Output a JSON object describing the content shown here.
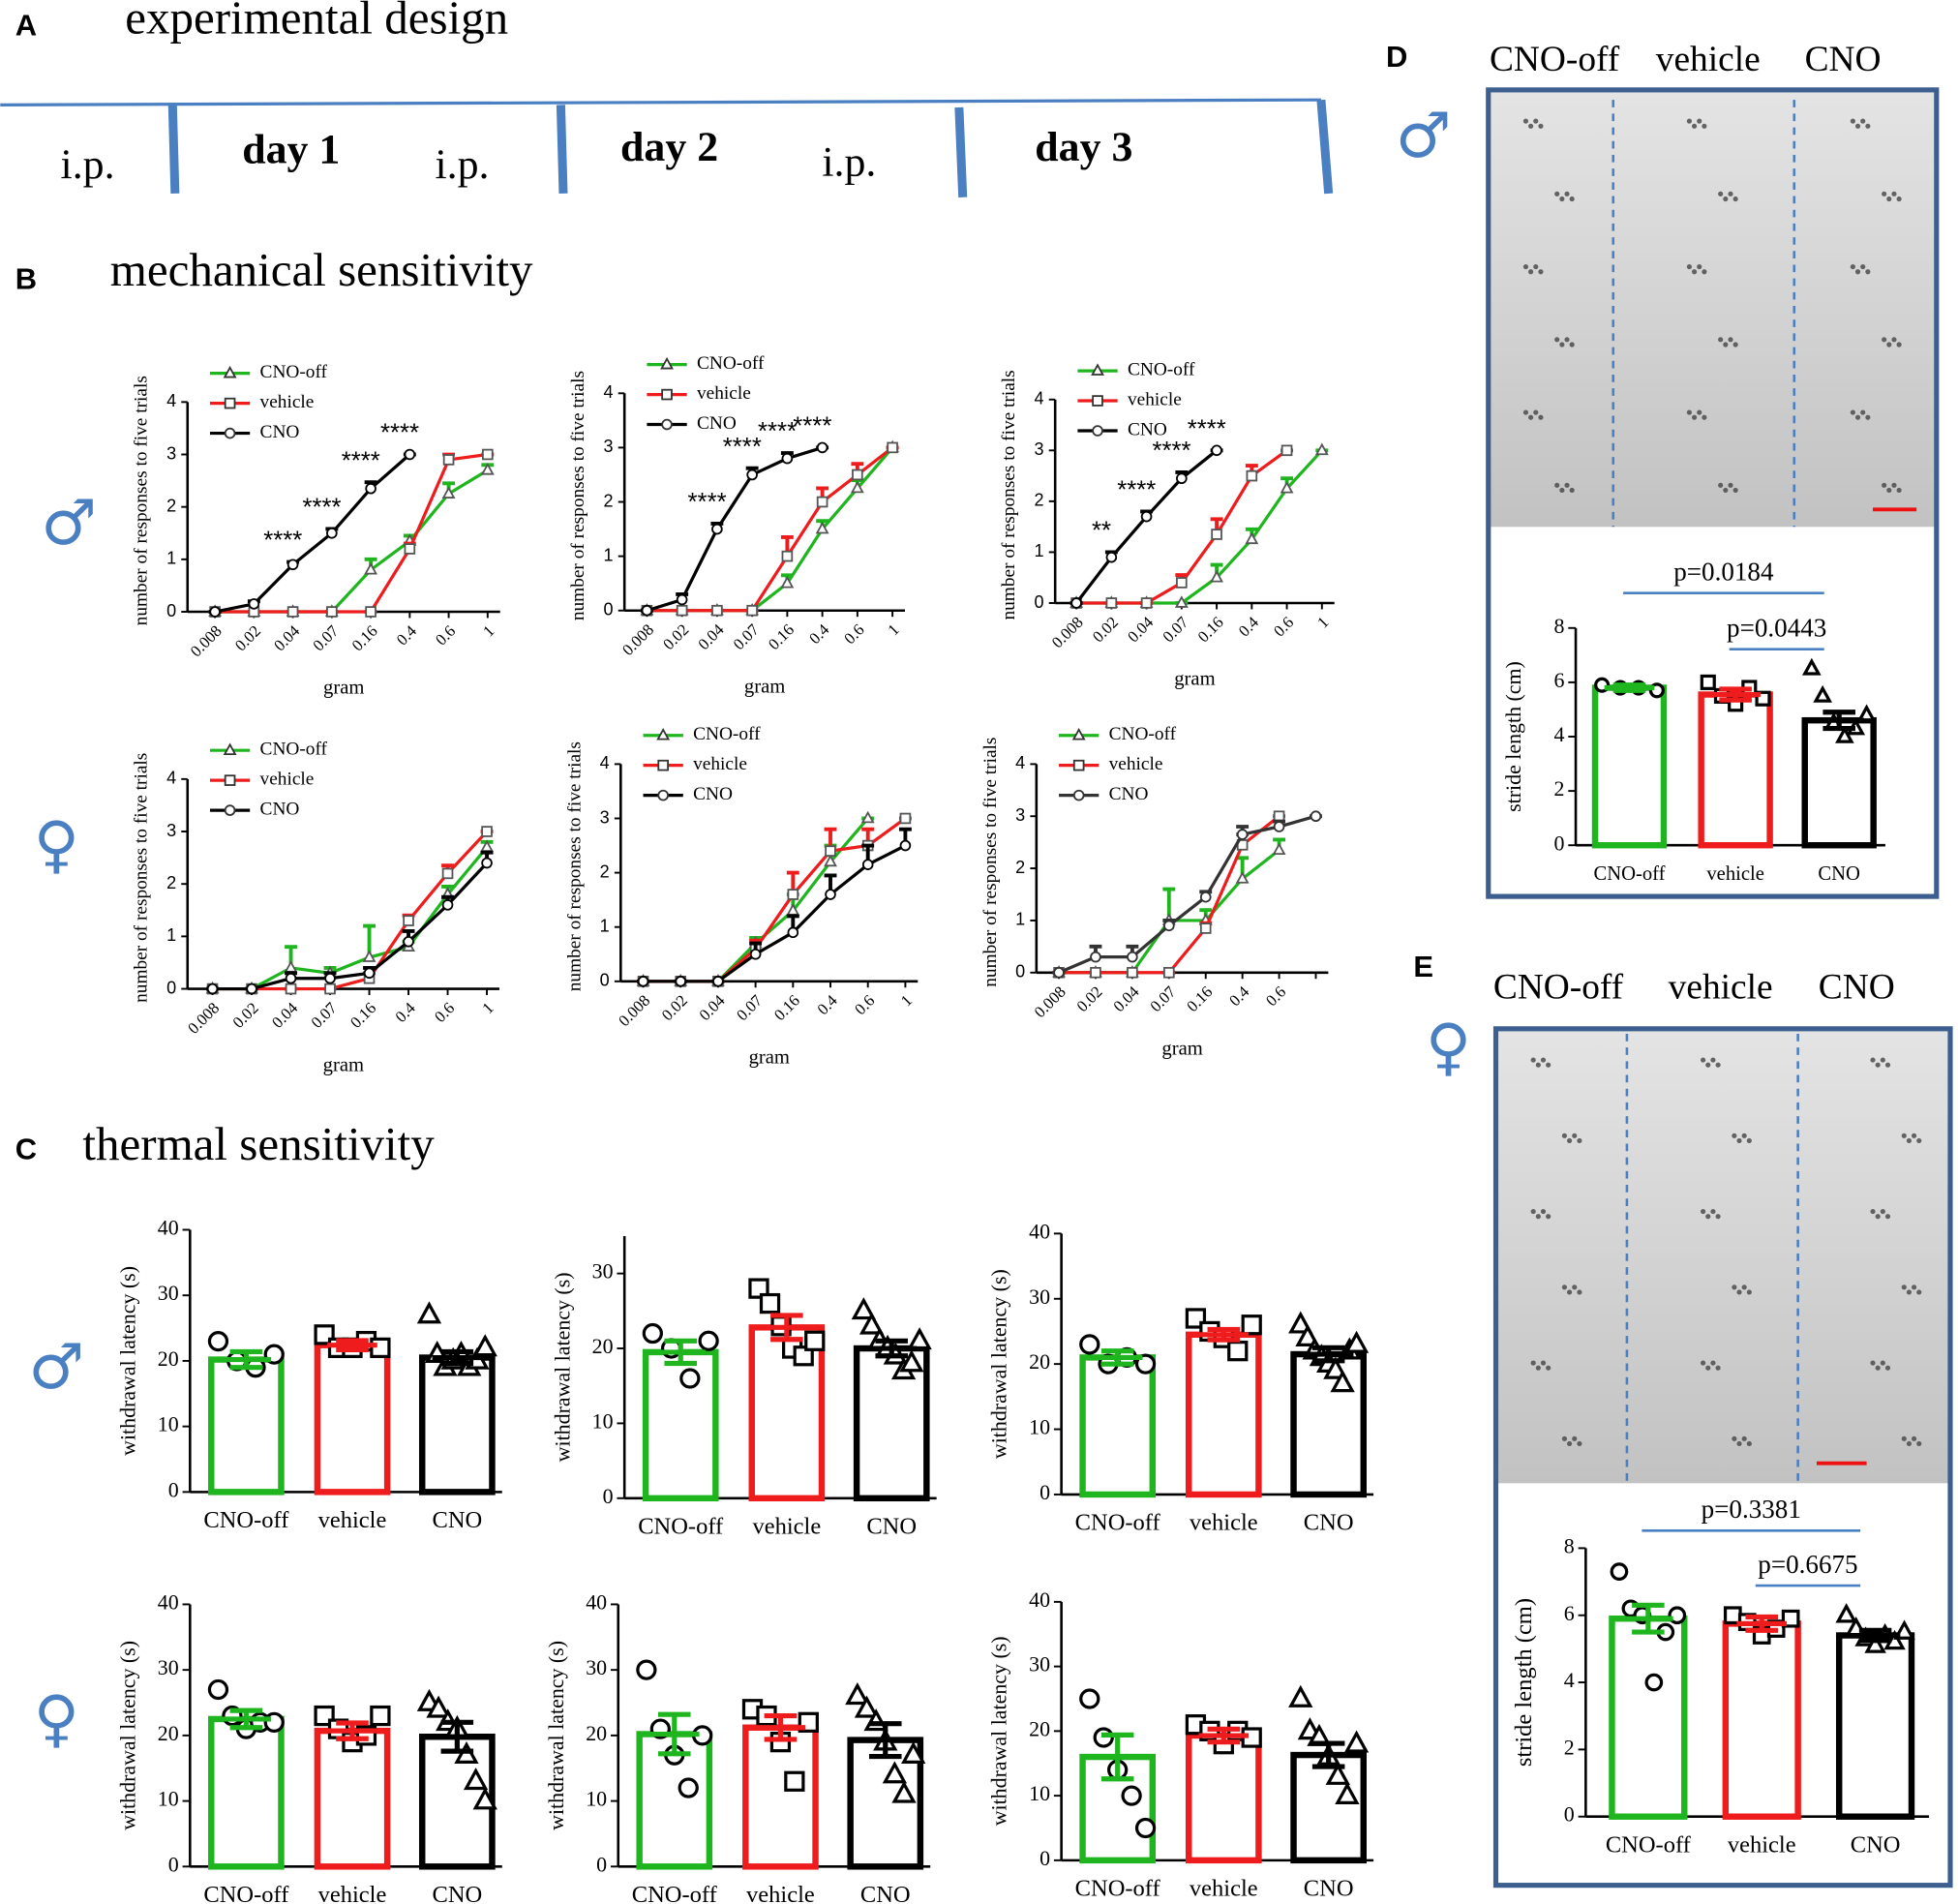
{
  "panels": {
    "A": {
      "label": "A",
      "title": "experimental design",
      "timeline": [
        "i.p.",
        "day 1",
        "i.p.",
        "day 2",
        "i.p.",
        "day 3"
      ]
    },
    "B": {
      "label": "B",
      "title": "mechanical sensitivity"
    },
    "C": {
      "label": "C",
      "title": "thermal sensitivity"
    },
    "D": {
      "label": "D",
      "sex": "♂",
      "columns": [
        "CNO-off",
        "vehicle",
        "CNO"
      ]
    },
    "E": {
      "label": "E",
      "sex": "♀",
      "columns": [
        "CNO-off",
        "vehicle",
        "CNO"
      ]
    }
  },
  "sex_labels": [
    "♂",
    "♀",
    "♂",
    "♀"
  ],
  "chart_data": [
    {
      "type": "line",
      "xlabel": "gram",
      "ylabel": "number of responses to five trials",
      "categories": [
        "0.008",
        "0.02",
        "0.04",
        "0.07",
        "0.16",
        "0.4",
        "0.6",
        "1"
      ],
      "ylim": [
        0,
        4
      ],
      "yticks": [
        0,
        1,
        2,
        3,
        4
      ],
      "series": [
        {
          "name": "CNO-off",
          "color": "#1fb51f",
          "marker": "triangle",
          "values": [
            0,
            0,
            0,
            0,
            0.8,
            1.35,
            2.25,
            2.7
          ],
          "errors": [
            0,
            0,
            0,
            0,
            0.2,
            0.1,
            0.2,
            0.1
          ]
        },
        {
          "name": "vehicle",
          "color": "#ee1c1c",
          "marker": "square",
          "values": [
            0,
            0,
            0,
            0,
            0,
            1.2,
            2.9,
            3
          ],
          "errors": [
            0,
            0,
            0,
            0,
            0,
            0.1,
            0.1,
            0
          ]
        },
        {
          "name": "CNO",
          "color": "#000000",
          "marker": "circle",
          "values": [
            0,
            0.15,
            0.9,
            1.5,
            2.35,
            3,
            null,
            null
          ],
          "errors": [
            0,
            0.05,
            0.05,
            0.08,
            0.12,
            0,
            null,
            null
          ]
        }
      ],
      "annotations": [
        {
          "text": "****",
          "category": "0.04"
        },
        {
          "text": "****",
          "category": "0.07"
        },
        {
          "text": "****",
          "category": "0.16"
        },
        {
          "text": "****",
          "category": "0.4"
        }
      ]
    },
    {
      "type": "line",
      "xlabel": "gram",
      "ylabel": "number of responses to five trials",
      "categories": [
        "0.008",
        "0.02",
        "0.04",
        "0.07",
        "0.16",
        "0.4",
        "0.6",
        "1"
      ],
      "ylim": [
        0,
        4
      ],
      "yticks": [
        0,
        1,
        2,
        3,
        4
      ],
      "series": [
        {
          "name": "CNO-off",
          "color": "#1fb51f",
          "marker": "triangle",
          "values": [
            0,
            0,
            0,
            0,
            0.5,
            1.5,
            2.25,
            3
          ],
          "errors": [
            0,
            0,
            0,
            0,
            0.15,
            0.15,
            0.15,
            0
          ]
        },
        {
          "name": "vehicle",
          "color": "#ee1c1c",
          "marker": "square",
          "values": [
            0,
            0,
            0,
            0,
            1,
            2,
            2.5,
            3
          ],
          "errors": [
            0,
            0,
            0,
            0,
            0.35,
            0.25,
            0.2,
            0
          ]
        },
        {
          "name": "CNO",
          "color": "#000000",
          "marker": "circle",
          "values": [
            0,
            0.2,
            1.5,
            2.5,
            2.8,
            3,
            null,
            null
          ],
          "errors": [
            0,
            0.1,
            0.1,
            0.12,
            0.1,
            0,
            null,
            null
          ]
        }
      ],
      "annotations": [
        {
          "text": "****",
          "category": "0.04"
        },
        {
          "text": "****",
          "category": "0.07"
        },
        {
          "text": "****",
          "category": "0.16"
        },
        {
          "text": "****",
          "category": "0.4"
        }
      ]
    },
    {
      "type": "line",
      "xlabel": "gram",
      "ylabel": "number of responses to five trials",
      "categories": [
        "0.008",
        "0.02",
        "0.04",
        "0.07",
        "0.16",
        "0.4",
        "0.6",
        "1"
      ],
      "ylim": [
        0,
        4
      ],
      "yticks": [
        0,
        1,
        2,
        3,
        4
      ],
      "series": [
        {
          "name": "CNO-off",
          "color": "#1fb51f",
          "marker": "triangle",
          "values": [
            0,
            0,
            0,
            0,
            0.5,
            1.25,
            2.25,
            3
          ],
          "errors": [
            0,
            0,
            0,
            0,
            0.25,
            0.2,
            0.2,
            0
          ]
        },
        {
          "name": "vehicle",
          "color": "#ee1c1c",
          "marker": "square",
          "values": [
            0,
            0,
            0,
            0.4,
            1.35,
            2.5,
            3,
            null
          ],
          "errors": [
            0,
            0,
            0,
            0.15,
            0.3,
            0.2,
            0,
            null
          ]
        },
        {
          "name": "CNO",
          "color": "#000000",
          "marker": "circle",
          "values": [
            0,
            0.9,
            1.7,
            2.45,
            3,
            null,
            null,
            null
          ],
          "errors": [
            0,
            0.1,
            0.1,
            0.12,
            0,
            null,
            null,
            null
          ]
        }
      ],
      "annotations": [
        {
          "text": "**",
          "category": "0.02"
        },
        {
          "text": "****",
          "category": "0.04"
        },
        {
          "text": "****",
          "category": "0.07"
        },
        {
          "text": "****",
          "category": "0.16"
        }
      ]
    },
    {
      "type": "line",
      "xlabel": "gram",
      "ylabel": "number of responses to five trials",
      "categories": [
        "0.008",
        "0.02",
        "0.04",
        "0.07",
        "0.16",
        "0.4",
        "0.6",
        "1"
      ],
      "ylim": [
        0,
        4
      ],
      "yticks": [
        0,
        1,
        2,
        3,
        4
      ],
      "series": [
        {
          "name": "CNO-off",
          "color": "#1fb51f",
          "marker": "triangle",
          "values": [
            0,
            0,
            0.4,
            0.3,
            0.6,
            0.8,
            1.8,
            2.7
          ],
          "errors": [
            0,
            0,
            0.4,
            0.1,
            0.6,
            0.1,
            0.15,
            0.1
          ]
        },
        {
          "name": "vehicle",
          "color": "#ee1c1c",
          "marker": "square",
          "values": [
            0,
            0,
            0,
            0,
            0.2,
            1.3,
            2.2,
            3
          ],
          "errors": [
            0,
            0,
            0,
            0,
            0.1,
            0.1,
            0.15,
            0
          ]
        },
        {
          "name": "CNO",
          "color": "#000000",
          "marker": "circle",
          "values": [
            0,
            0,
            0.2,
            0.2,
            0.3,
            0.9,
            1.6,
            2.4
          ],
          "errors": [
            0,
            0,
            0.1,
            0.1,
            0.1,
            0.2,
            0.15,
            0.2
          ]
        }
      ]
    },
    {
      "type": "line",
      "xlabel": "gram",
      "ylabel": "number of responses to five trials",
      "categories": [
        "0.008",
        "0.02",
        "0.04",
        "0.07",
        "0.16",
        "0.4",
        "0.6",
        "1"
      ],
      "ylim": [
        0,
        4
      ],
      "yticks": [
        0,
        1,
        2,
        3,
        4
      ],
      "series": [
        {
          "name": "CNO-off",
          "color": "#1fb51f",
          "marker": "triangle",
          "values": [
            0,
            0,
            0,
            0.7,
            1.3,
            2.2,
            3,
            null
          ],
          "errors": [
            0,
            0,
            0,
            0.1,
            0.3,
            0.3,
            0,
            null
          ]
        },
        {
          "name": "vehicle",
          "color": "#ee1c1c",
          "marker": "square",
          "values": [
            0,
            0,
            0,
            0.6,
            1.6,
            2.4,
            2.5,
            3
          ],
          "errors": [
            0,
            0,
            0,
            0.15,
            0.4,
            0.4,
            0.3,
            0
          ]
        },
        {
          "name": "CNO",
          "color": "#000000",
          "marker": "circle",
          "values": [
            0,
            0,
            0,
            0.5,
            0.9,
            1.6,
            2.15,
            2.5
          ],
          "errors": [
            0,
            0,
            0,
            0.2,
            0.3,
            0.35,
            0.35,
            0.3
          ]
        }
      ]
    },
    {
      "type": "line",
      "xlabel": "gram",
      "ylabel": "number of responses to five trials",
      "categories": [
        "0.008",
        "0.02",
        "0.04",
        "0.07",
        "0.16",
        "0.4",
        "0.6",
        null
      ],
      "ylim": [
        0,
        4
      ],
      "yticks": [
        0,
        1,
        2,
        3,
        4
      ],
      "series": [
        {
          "name": "CNO-off",
          "color": "#1fb51f",
          "marker": "triangle",
          "values": [
            0,
            0,
            0,
            1,
            1,
            1.8,
            2.35,
            null
          ],
          "errors": [
            0,
            0,
            0,
            0.6,
            0.2,
            0.4,
            0.2,
            null
          ]
        },
        {
          "name": "vehicle",
          "color": "#ee1c1c",
          "marker": "square",
          "values": [
            0,
            0,
            0,
            0,
            0.85,
            2.45,
            3,
            null
          ],
          "errors": [
            0,
            0,
            0,
            0,
            0.1,
            0.2,
            0,
            null
          ]
        },
        {
          "name": "CNO",
          "color": "#333333",
          "marker": "circle",
          "values": [
            0,
            0.3,
            0.3,
            0.9,
            1.45,
            2.65,
            2.8,
            3
          ],
          "errors": [
            0,
            0.2,
            0.2,
            0.1,
            0.1,
            0.15,
            0.1,
            0
          ]
        }
      ]
    },
    {
      "type": "bar",
      "ylabel": "withdrawal latency (s)",
      "categories": [
        "CNO-off",
        "vehicle",
        "CNO"
      ],
      "colors": [
        "#1fb51f",
        "#ee1c1c",
        "#000000"
      ],
      "markers": [
        "circle",
        "square",
        "triangle"
      ],
      "values": [
        20.2,
        22.4,
        20.5
      ],
      "errors": [
        1.2,
        0.7,
        0.9
      ],
      "points": [
        [
          23,
          20,
          19,
          21
        ],
        [
          24,
          22,
          22,
          23,
          22
        ],
        [
          27,
          21,
          19,
          20,
          21,
          19,
          20,
          22
        ]
      ],
      "ylim": [
        0,
        40
      ],
      "yticks": [
        0,
        10,
        20,
        30,
        40
      ]
    },
    {
      "type": "bar",
      "ylabel": "withdrawal latency (s)",
      "categories": [
        "CNO-off",
        "vehicle",
        "CNO"
      ],
      "colors": [
        "#1fb51f",
        "#ee1c1c",
        "#000000"
      ],
      "markers": [
        "circle",
        "square",
        "triangle"
      ],
      "values": [
        19.5,
        22.8,
        20
      ],
      "errors": [
        1.5,
        1.6,
        1
      ],
      "points": [
        [
          22,
          20,
          16,
          21
        ],
        [
          28,
          26,
          23,
          20,
          19,
          21
        ],
        [
          25,
          23,
          21,
          20,
          19,
          17,
          18,
          21
        ]
      ],
      "ylim": [
        0,
        35
      ],
      "yticks": [
        0,
        10,
        20,
        30
      ]
    },
    {
      "type": "bar",
      "ylabel": "withdrawal latency (s)",
      "categories": [
        "CNO-off",
        "vehicle",
        "CNO"
      ],
      "colors": [
        "#1fb51f",
        "#ee1c1c",
        "#000000"
      ],
      "markers": [
        "circle",
        "square",
        "triangle"
      ],
      "values": [
        21,
        24.5,
        21.5
      ],
      "errors": [
        1,
        0.8,
        1
      ],
      "points": [
        [
          23,
          20,
          21,
          20
        ],
        [
          27,
          25,
          24,
          22,
          26
        ],
        [
          26,
          24,
          22,
          21,
          20,
          19,
          17,
          22,
          23
        ]
      ],
      "ylim": [
        0,
        40
      ],
      "yticks": [
        0,
        10,
        20,
        30,
        40
      ]
    },
    {
      "type": "bar",
      "ylabel": "withdrawal latency (s)",
      "categories": [
        "CNO-off",
        "vehicle",
        "CNO"
      ],
      "colors": [
        "#1fb51f",
        "#ee1c1c",
        "#000000"
      ],
      "markers": [
        "circle",
        "square",
        "triangle"
      ],
      "values": [
        22.5,
        20.7,
        19.8
      ],
      "errors": [
        1.3,
        1.2,
        2.2
      ],
      "points": [
        [
          27,
          23,
          21,
          22,
          22
        ],
        [
          23,
          21,
          19,
          20,
          23
        ],
        [
          25,
          24,
          22,
          21,
          17,
          13,
          10
        ]
      ],
      "ylim": [
        0,
        40
      ],
      "yticks": [
        0,
        10,
        20,
        30,
        40
      ]
    },
    {
      "type": "bar",
      "ylabel": "withdrawal latency (s)",
      "categories": [
        "CNO-off",
        "vehicle",
        "CNO"
      ],
      "colors": [
        "#1fb51f",
        "#ee1c1c",
        "#000000"
      ],
      "markers": [
        "circle",
        "square",
        "triangle"
      ],
      "values": [
        20.2,
        21.2,
        19.3
      ],
      "errors": [
        3,
        1.8,
        2.5
      ],
      "points": [
        [
          30,
          21,
          17,
          12,
          20
        ],
        [
          24,
          23,
          19,
          13,
          22
        ],
        [
          26,
          24,
          22,
          19,
          14,
          11,
          17
        ]
      ],
      "ylim": [
        0,
        40
      ],
      "yticks": [
        0,
        10,
        20,
        30,
        40
      ]
    },
    {
      "type": "bar",
      "ylabel": "withdrawal latency (s)",
      "categories": [
        "CNO-off",
        "vehicle",
        "CNO"
      ],
      "colors": [
        "#1fb51f",
        "#ee1c1c",
        "#000000"
      ],
      "markers": [
        "circle",
        "square",
        "triangle"
      ],
      "values": [
        16,
        19.3,
        16.3
      ],
      "errors": [
        3.4,
        1,
        1.8
      ],
      "points": [
        [
          25,
          19,
          14,
          10,
          5
        ],
        [
          21,
          20,
          18,
          20,
          19
        ],
        [
          25,
          20,
          19,
          16,
          13,
          10,
          18
        ]
      ],
      "ylim": [
        0,
        40
      ],
      "yticks": [
        0,
        10,
        20,
        30,
        40
      ]
    },
    {
      "type": "bar",
      "ylabel": "stride length (cm)",
      "categories": [
        "CNO-off",
        "vehicle",
        "CNO"
      ],
      "colors": [
        "#1fb51f",
        "#ee1c1c",
        "#000000"
      ],
      "markers": [
        "circle",
        "square",
        "triangle"
      ],
      "values": [
        5.8,
        5.55,
        4.6
      ],
      "errors": [
        0.1,
        0.2,
        0.3
      ],
      "points": [
        [
          5.9,
          5.8,
          5.8,
          5.7
        ],
        [
          6,
          5.5,
          5.2,
          5.8,
          5.4
        ],
        [
          6.5,
          5.5,
          4.5,
          4,
          4.3,
          4.8
        ]
      ],
      "ylim": [
        0,
        8
      ],
      "yticks": [
        0,
        2,
        4,
        6,
        8
      ],
      "annotations": [
        {
          "text": "p=0.0184",
          "from": "CNO-off",
          "to": "CNO"
        },
        {
          "text": "p=0.0443",
          "from": "vehicle",
          "to": "CNO"
        }
      ]
    },
    {
      "type": "bar",
      "ylabel": "stride length (cm)",
      "categories": [
        "CNO-off",
        "vehicle",
        "CNO"
      ],
      "colors": [
        "#1fb51f",
        "#ee1c1c",
        "#000000"
      ],
      "markers": [
        "circle",
        "square",
        "triangle"
      ],
      "values": [
        5.9,
        5.75,
        5.4
      ],
      "errors": [
        0.4,
        0.2,
        0.15
      ],
      "points": [
        [
          7.3,
          6.2,
          6,
          4,
          5.5,
          6
        ],
        [
          6,
          5.8,
          5.4,
          5.6,
          5.9
        ],
        [
          6,
          5.6,
          5.3,
          5.1,
          5.4,
          5.2,
          5.5
        ]
      ],
      "ylim": [
        0,
        8
      ],
      "yticks": [
        0,
        2,
        4,
        6,
        8
      ],
      "annotations": [
        {
          "text": "p=0.3381",
          "from": "CNO-off",
          "to": "CNO"
        },
        {
          "text": "p=0.6675",
          "from": "vehicle",
          "to": "CNO"
        }
      ]
    }
  ]
}
